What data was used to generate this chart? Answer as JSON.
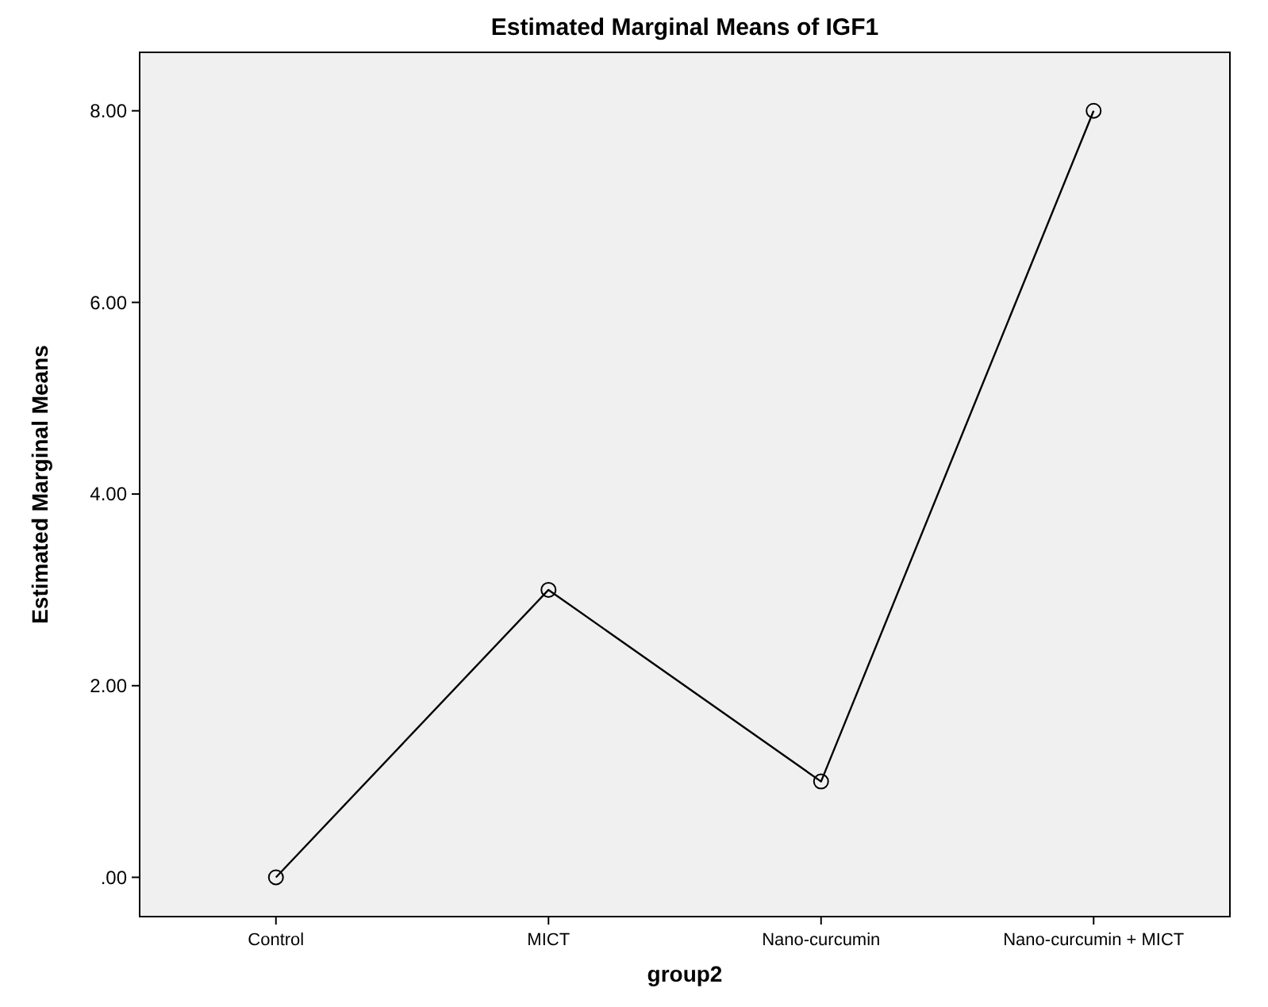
{
  "chart_data": {
    "type": "line",
    "title": "Estimated Marginal Means of IGF1",
    "xlabel": "group2",
    "ylabel": "Estimated Marginal Means",
    "categories": [
      "Control",
      "MICT",
      "Nano-curcumin",
      "Nano-curcumin + MICT"
    ],
    "series": [
      {
        "color": "#000000",
        "values": [
          0,
          3,
          1,
          8
        ]
      }
    ],
    "ylim": [
      -0.41,
      8.61
    ],
    "yticks": [
      {
        "value": 0,
        "label": ".00"
      },
      {
        "value": 2,
        "label": "2.00"
      },
      {
        "value": 4,
        "label": "4.00"
      },
      {
        "value": 6,
        "label": "6.00"
      },
      {
        "value": 8,
        "label": "8.00"
      }
    ],
    "grid": false,
    "marker": "circle",
    "line_style": "solid"
  }
}
